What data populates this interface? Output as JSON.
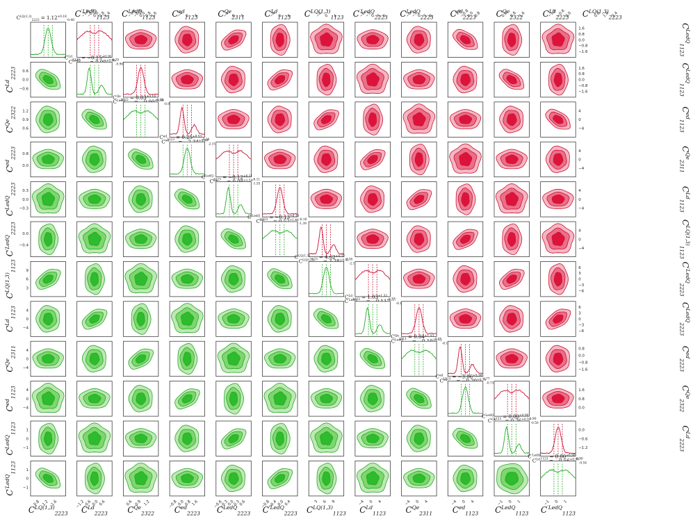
{
  "chart_data": {
    "type": "corner",
    "grid_size": 12,
    "parameters": [
      "C_{2223}^{LQ(1,3)}",
      "C_{2223}^{Ld}",
      "C_{2322}^{Qe}",
      "C_{2223}^{ed}",
      "C_{2223}^{LedQ}",
      "C_{2223}^{′LedQ}",
      "C_{1123}^{LQ(1,3)}",
      "C_{1123}^{Ld}",
      "C_{2311}^{Qe}",
      "C_{1123}^{ed}",
      "C_{1123}^{LedQ}",
      "C_{1123}^{′LedQ}"
    ],
    "parameters_right_order": [
      "C_{2223}^{LQ(1,3)}",
      "C_{2223}^{Ld}",
      "C_{2322}^{Qe}",
      "C_{2223}^{ed}",
      "C_{2223}^{LedQ}",
      "C_{2223}^{′LedQ}",
      "C_{1123}^{LQ(1,3)}",
      "C_{1123}^{Ld}",
      "C_{2311}^{Qe}",
      "C_{1123}^{ed}",
      "C_{1123}^{LedQ}",
      "C_{1123}^{′LedQ}"
    ],
    "axis_labels": {
      "bottom": [
        "C^{LQ(1,3)}_{2223}",
        "C^{Ld}_{2223}",
        "C^{Qe}_{2322}",
        "C^{ed}_{2223}",
        "C^{LedQ}_{2223}",
        "C^{′LedQ}_{2223}",
        "C^{LQ(1,3)}_{1123}",
        "C^{Ld}_{1123}",
        "C^{Qe}_{2311}",
        "C^{ed}_{1123}",
        "C^{LedQ}_{1123}",
        "C^{′LedQ}_{1123}"
      ],
      "left": [
        "",
        "C^{Ld}_{2223}",
        "C^{Qe}_{2322}",
        "C^{ed}_{2223}",
        "C^{LedQ}_{2223}",
        "C^{′LedQ}_{2223}",
        "C^{LQ(1,3)}_{1123}",
        "C^{Ld}_{1123}",
        "C^{Qe}_{2311}",
        "C^{ed}_{1123}",
        "C^{LedQ}_{1123}",
        "C^{′LedQ}_{1123}"
      ],
      "top": [
        "",
        "",
        "C^{′LedQ}_{1123}",
        "C^{LedQ}_{1123}",
        "C^{ed}_{1123}",
        "C^{Qe}_{2311}",
        "C^{Ld}_{1123}",
        "C^{LQ(1,3)}_{1123}",
        "C^{′LedQ}_{2223}",
        "C^{LedQ}_{2223}",
        "C^{ed}_{2223}",
        "C^{Qe}_{2322}",
        "C^{Ld}_{2223}",
        "C^{LQ(1,3)}_{2223}"
      ],
      "right": [
        "C^{LedQ}_{1123}",
        "C^{LedQ}_{1123}",
        "C^{ed}_{1123}",
        "C^{Qe}_{2311}",
        "C^{Ld}_{1123}",
        "C^{LQ(1,3)}_{1123}",
        "C^{′LedQ}_{2223}",
        "C^{LedQ}_{2223}",
        "C^{ed}_{2223}",
        "C^{Qe}_{2322}",
        "C^{Ld}_{2223}",
        ""
      ]
    },
    "lower_stats": [
      "C^{LQ(1,3)}_{2223} = 1.12^{+0.18}_{-0.48}",
      "C^{Ld}_{2223} = −0.15^{+0.26}_{-0.29}",
      "C^{Qe}_{2322} = 0.83^{+0.18}_{-0.19}",
      "C^{ed}_{2223} = 0.25^{+0.53}_{-0.36}",
      "C^{LedQ}_{2223} = −0.12^{+6.11}_{-6.11}",
      "C^{′LedQ}_{2223} = −0.13^{+6.16}_{-6.16}",
      "C^{LQ(1,3)}_{1123} = 4.62^{+4.32}_{-2.38}",
      "C^{Ld}_{1123} = 1.03^{+1.32}_{-1.77}",
      "C^{Qe}_{2311} = 0.04^{+1.53}_{-1.21}",
      "C^{ed}_{1123} = −3.06^{+5.38}_{-1.77}",
      "C^{LedQ}_{1123} = 0.00^{+0.90}_{-0.90}",
      "C^{′LedQ}_{1123} = 0.00^{+0.90}_{-0.90}"
    ],
    "upper_stats": [
      "C^{LedQ}_{1123} = 0.00^{+0.96}_{-0.96}",
      "C^{LedQ}_{1123} = −0.00^{+0.99}_{-0.99}",
      "C^{ed}_{1123} = −2.34^{+4.69}_{-2.31}",
      "C^{Qe}_{2311} = 0.08^{+1.54}_{-1.55}",
      "C^{Ld}_{1123} = 0.52^{+1.46}_{-1.39}",
      "C^{LQ(1,3)}_{1123} = 3.38^{+4.31}_{-2.12}",
      "C^{′LedQ}_{2223} = −0.11^{+6.17}_{-6.17}",
      "C^{LedQ}_{2223} = −0.10^{+6.12}_{-6.14}",
      "C^{ed}_{2223} = −0.20^{+0.70}_{-0.73}",
      "C^{Qe}_{2322} = 0.76^{+0.51}_{-0.50}",
      "C^{Ld}_{2223} = −0.56^{+0.36}_{-0.54}",
      "C^{LQ(1,3)}_{2223} = 1.75^{+0.54}_{-0.47}"
    ],
    "bottom_ticks": [
      [
        "0.8",
        "1.2",
        "1.6"
      ],
      [
        "−1.2",
        "−0.6",
        "0.0",
        "0.6"
      ],
      [
        "0.6",
        "0.9",
        "1.2"
      ],
      [
        "−0.8",
        "0.0",
        "0.8",
        "1.6"
      ],
      [
        "−0.6",
        "−0.3",
        "0.0",
        "0.3",
        "0.6"
      ],
      [
        "−0.8",
        "−0.4",
        "0.0",
        "0.4"
      ],
      [
        "3",
        "6",
        "9"
      ],
      [
        "−4",
        "0",
        "4"
      ],
      [
        "−4",
        "0",
        "4"
      ],
      [
        "−4",
        "0",
        "4"
      ],
      [
        "−1",
        "0",
        "1"
      ],
      [
        "−1",
        "0",
        "1"
      ]
    ],
    "top_ticks": [
      [],
      [],
      [
        "−1.6",
        "−0.8",
        "0.0",
        "0.8",
        "1.6"
      ],
      [
        "−1.6",
        "−0.8",
        "0.0",
        "0.8",
        "1.6"
      ],
      [
        "−4",
        "0",
        "4"
      ],
      [
        "−4",
        "0",
        "4"
      ],
      [
        "−4",
        "0",
        "4"
      ],
      [
        "−4",
        "0",
        "4"
      ],
      [
        "−6",
        "−3",
        "0",
        "3",
        "6"
      ],
      [
        "−6",
        "−3",
        "0",
        "3",
        "6"
      ],
      [
        "−1.6",
        "−0.8",
        "0.0",
        "0.8"
      ],
      [
        "0.0",
        "0.8",
        "1.6"
      ],
      [
        "−1.2",
        "−0.6",
        "0.0"
      ],
      [
        "0.8",
        "1.6",
        "2.4"
      ]
    ],
    "left_ticks": [
      [],
      [
        "−0.6",
        "0.0",
        "0.6"
      ],
      [
        "0.6",
        "0.9",
        "1.2"
      ],
      [
        "0.0",
        "0.8"
      ],
      [
        "−0.3",
        "0.0",
        "0.3"
      ],
      [
        "−0.4",
        "0.0"
      ],
      [
        "3",
        "6",
        "9"
      ],
      [
        "−4",
        "0",
        "4"
      ],
      [
        "−4",
        "0",
        "4"
      ],
      [
        "−4",
        "0",
        "4"
      ],
      [
        "−1",
        "0",
        "1"
      ],
      [
        "−1",
        "0",
        "1"
      ]
    ],
    "right_ticks": [
      [
        "−1.6",
        "−0.8",
        "0.0",
        "0.8",
        "1.6"
      ],
      [
        "−1.6",
        "−0.8",
        "0.0",
        "0.8",
        "1.6"
      ],
      [
        "−4",
        "0",
        "4"
      ],
      [
        "−4",
        "0",
        "4"
      ],
      [
        "−4",
        "0",
        "4"
      ],
      [
        "−4",
        "0",
        "4"
      ],
      [
        "−6",
        "−3",
        "0",
        "3",
        "6"
      ],
      [
        "−6",
        "−3",
        "0",
        "3",
        "6"
      ],
      [
        "−1.6",
        "−0.8",
        "0.0",
        "0.8"
      ],
      [
        "0.0",
        "0.8",
        "1.6"
      ],
      [
        "−1.2",
        "−0.6",
        "0.0"
      ],
      []
    ],
    "colors": {
      "lower_fill_outer": "#bfe8b5",
      "lower_fill_mid": "#7fd66f",
      "lower_fill_inner": "#2ebb2e",
      "lower_line": "#22aa22",
      "upper_fill_outer": "#f4b7c2",
      "upper_fill_mid": "#ea6f88",
      "upper_fill_inner": "#dc143c",
      "upper_line": "#cc1133"
    }
  }
}
